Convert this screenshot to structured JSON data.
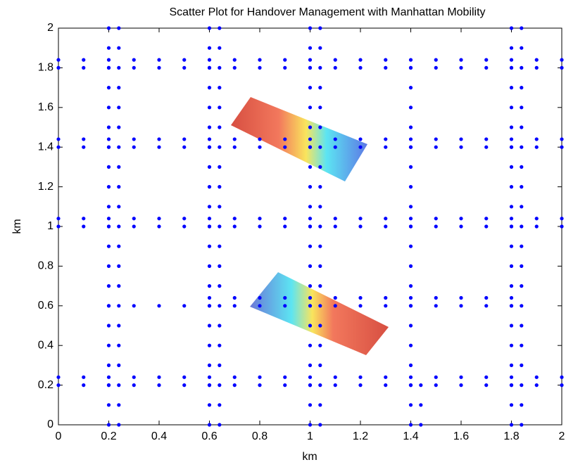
{
  "chart_data": {
    "type": "scatter",
    "title": "Scatter Plot for Handover Management with Manhattan Mobility",
    "xlabel": "km",
    "ylabel": "km",
    "color": "#0000ff",
    "xlim": [
      0,
      2
    ],
    "ylim": [
      0,
      2
    ],
    "xticks": [
      0,
      0.2,
      0.4,
      0.6,
      0.8,
      1,
      1.2,
      1.4,
      1.6,
      1.8,
      2
    ],
    "yticks": [
      0,
      0.2,
      0.4,
      0.6,
      0.8,
      1,
      1.2,
      1.4,
      1.6,
      1.8,
      2
    ],
    "series": [
      {
        "x": [
          0.2,
          0.2,
          0.2,
          0.2,
          0.2,
          0.2,
          0.2,
          0.2,
          0.2,
          0.2,
          0.2,
          0.2,
          0.2,
          0.2,
          0.2,
          0.2,
          0.2,
          0.2,
          0.2,
          0.2,
          0.2
        ],
        "values": [
          0,
          0.1,
          0.2,
          0.3,
          0.4,
          0.5,
          0.6,
          0.7,
          0.8,
          0.9,
          1,
          1.1,
          1.2,
          1.3,
          1.4,
          1.5,
          1.6,
          1.7,
          1.8,
          1.9,
          2
        ]
      },
      {
        "x": [
          0.24,
          0.24,
          0.24,
          0.24,
          0.24,
          0.24,
          0.24,
          0.24,
          0.24,
          0.24,
          0.24,
          0.24,
          0.24,
          0.24,
          0.24,
          0.24,
          0.24,
          0.24,
          0.24,
          0.24,
          0.24
        ],
        "values": [
          0,
          0.1,
          0.2,
          0.3,
          0.4,
          0.5,
          0.6,
          0.7,
          0.8,
          0.9,
          1,
          1.1,
          1.2,
          1.3,
          1.4,
          1.5,
          1.6,
          1.7,
          1.8,
          1.9,
          2
        ]
      },
      {
        "x": [
          0.6,
          0.6,
          0.6,
          0.6,
          0.6,
          0.6,
          0.6,
          0.6,
          0.6,
          0.6,
          0.6,
          0.6,
          0.6,
          0.6,
          0.6,
          0.6,
          0.6,
          0.6,
          0.6,
          0.6,
          0.6
        ],
        "values": [
          0,
          0.1,
          0.2,
          0.3,
          0.4,
          0.5,
          0.6,
          0.7,
          0.8,
          0.9,
          1,
          1.1,
          1.2,
          1.3,
          1.4,
          1.5,
          1.6,
          1.7,
          1.8,
          1.9,
          2
        ]
      },
      {
        "x": [
          0.64,
          0.64,
          0.64,
          0.64,
          0.64,
          0.64,
          0.64,
          0.64,
          0.64,
          0.64,
          0.64,
          0.64,
          0.64,
          0.64,
          0.64,
          0.64,
          0.64,
          0.64,
          0.64,
          0.64,
          0.64
        ],
        "values": [
          0,
          0.1,
          0.2,
          0.3,
          0.4,
          0.5,
          0.6,
          0.7,
          0.8,
          0.9,
          1,
          1.1,
          1.2,
          1.3,
          1.4,
          1.5,
          1.6,
          1.7,
          1.8,
          1.9,
          2
        ]
      },
      {
        "x": [
          1,
          1,
          1,
          1,
          1,
          1,
          1,
          1,
          1,
          1,
          1,
          1,
          1,
          1,
          1,
          1,
          1,
          1,
          1,
          1,
          1
        ],
        "values": [
          0,
          0.1,
          0.2,
          0.3,
          0.4,
          0.5,
          0.6,
          0.7,
          0.8,
          0.9,
          1,
          1.1,
          1.2,
          1.3,
          1.4,
          1.5,
          1.6,
          1.7,
          1.8,
          1.9,
          2
        ]
      },
      {
        "x": [
          1.04,
          1.04,
          1.04,
          1.04,
          1.04,
          1.04,
          1.04,
          1.04,
          1.04,
          1.04,
          1.04,
          1.04,
          1.04,
          1.04,
          1.04,
          1.04,
          1.04,
          1.04,
          1.04,
          1.04,
          1.04
        ],
        "values": [
          0,
          0.1,
          0.2,
          0.3,
          0.4,
          0.5,
          0.6,
          0.7,
          0.8,
          0.9,
          1,
          1.1,
          1.2,
          1.3,
          1.4,
          1.5,
          1.6,
          1.7,
          1.8,
          1.9,
          2
        ]
      },
      {
        "x": [
          1.4,
          1.4,
          1.4,
          1.4,
          1.4,
          1.4,
          1.4,
          1.4,
          1.4,
          1.4,
          1.4,
          1.4,
          1.4,
          1.4,
          1.4,
          1.4,
          1.4,
          1.4,
          1.4
        ],
        "values": [
          0,
          0.1,
          0.2,
          0.3,
          0.4,
          0.5,
          0.6,
          0.7,
          0.8,
          0.9,
          1,
          1.1,
          1.2,
          1.3,
          1.4,
          1.5,
          1.6,
          1.7,
          1.8
        ]
      },
      {
        "x": [
          1.44,
          1.44,
          1.44
        ],
        "values": [
          0,
          0.1,
          0.2
        ]
      },
      {
        "x": [
          1.8,
          1.8,
          1.8,
          1.8,
          1.8,
          1.8,
          1.8,
          1.8,
          1.8,
          1.8,
          1.8,
          1.8,
          1.8,
          1.8,
          1.8,
          1.8,
          1.8,
          1.8,
          1.8,
          1.8,
          1.8
        ],
        "values": [
          0,
          0.1,
          0.2,
          0.3,
          0.4,
          0.5,
          0.6,
          0.7,
          0.8,
          0.9,
          1,
          1.1,
          1.2,
          1.3,
          1.4,
          1.5,
          1.6,
          1.7,
          1.8,
          1.9,
          2
        ]
      },
      {
        "x": [
          1.84,
          1.84,
          1.84,
          1.84,
          1.84,
          1.84,
          1.84,
          1.84,
          1.84,
          1.84,
          1.84,
          1.84,
          1.84,
          1.84,
          1.84,
          1.84,
          1.84,
          1.84,
          1.84,
          1.84,
          1.84
        ],
        "values": [
          0,
          0.1,
          0.2,
          0.3,
          0.4,
          0.5,
          0.6,
          0.7,
          0.8,
          0.9,
          1,
          1.1,
          1.2,
          1.3,
          1.4,
          1.5,
          1.6,
          1.7,
          1.8,
          1.9,
          2
        ]
      },
      {
        "x": [
          0,
          0.1,
          0.2,
          0.3,
          0.4,
          0.5,
          0.6,
          0.7,
          0.8,
          0.9,
          1,
          1.1,
          1.2,
          1.3,
          1.4,
          1.5,
          1.6,
          1.7,
          1.8,
          1.9,
          2
        ],
        "values": [
          0.2,
          0.2,
          0.2,
          0.2,
          0.2,
          0.2,
          0.2,
          0.2,
          0.2,
          0.2,
          0.2,
          0.2,
          0.2,
          0.2,
          0.2,
          0.2,
          0.2,
          0.2,
          0.2,
          0.2,
          0.2
        ]
      },
      {
        "x": [
          0,
          0.1,
          0.2,
          0.3,
          0.4,
          0.5,
          0.6,
          0.7,
          0.8,
          0.9,
          1,
          1.1,
          1.2,
          1.3,
          1.4,
          1.5,
          1.6,
          1.7,
          1.8,
          1.9,
          2
        ],
        "values": [
          0.24,
          0.24,
          0.24,
          0.24,
          0.24,
          0.24,
          0.24,
          0.24,
          0.24,
          0.24,
          0.24,
          0.24,
          0.24,
          0.24,
          0.24,
          0.24,
          0.24,
          0.24,
          0.24,
          0.24,
          0.24
        ]
      },
      {
        "x": [
          0.2,
          0.3,
          0.4,
          0.5,
          0.6,
          0.7,
          0.8,
          0.9,
          1,
          1.1,
          1.2,
          1.3,
          1.4,
          1.5,
          1.6,
          1.7,
          1.8
        ],
        "values": [
          0.6,
          0.6,
          0.6,
          0.6,
          0.6,
          0.6,
          0.6,
          0.6,
          0.6,
          0.6,
          0.6,
          0.6,
          0.6,
          0.6,
          0.6,
          0.6,
          0.6
        ]
      },
      {
        "x": [
          0.6,
          0.7,
          0.8,
          0.9,
          1,
          1.1,
          1.2,
          1.3,
          1.4,
          1.5,
          1.6,
          1.7,
          1.8
        ],
        "values": [
          0.64,
          0.64,
          0.64,
          0.64,
          0.64,
          0.64,
          0.64,
          0.64,
          0.64,
          0.64,
          0.64,
          0.64,
          0.64
        ]
      },
      {
        "x": [
          0,
          0.1,
          0.2,
          0.3,
          0.4,
          0.5,
          0.6,
          0.7,
          0.8,
          0.9,
          1,
          1.1,
          1.2,
          1.3,
          1.4,
          1.5,
          1.6,
          1.7,
          1.8,
          1.9,
          2
        ],
        "values": [
          1,
          1,
          1,
          1,
          1,
          1,
          1,
          1,
          1,
          1,
          1,
          1,
          1,
          1,
          1,
          1,
          1,
          1,
          1,
          1,
          1
        ]
      },
      {
        "x": [
          0,
          0.1,
          0.2,
          0.3,
          0.4,
          0.5,
          0.6,
          0.7,
          0.8,
          0.9,
          1,
          1.1,
          1.2,
          1.3,
          1.4,
          1.5,
          1.6,
          1.7,
          1.8,
          1.9,
          2
        ],
        "values": [
          1.04,
          1.04,
          1.04,
          1.04,
          1.04,
          1.04,
          1.04,
          1.04,
          1.04,
          1.04,
          1.04,
          1.04,
          1.04,
          1.04,
          1.04,
          1.04,
          1.04,
          1.04,
          1.04,
          1.04,
          1.04
        ]
      },
      {
        "x": [
          0,
          0.1,
          0.2,
          0.3,
          0.4,
          0.5,
          0.6,
          0.7,
          0.8,
          0.9,
          1,
          1.1,
          1.2,
          1.3,
          1.4,
          1.5,
          1.6,
          1.7,
          1.8,
          1.9,
          2
        ],
        "values": [
          1.4,
          1.4,
          1.4,
          1.4,
          1.4,
          1.4,
          1.4,
          1.4,
          1.4,
          1.4,
          1.4,
          1.4,
          1.4,
          1.4,
          1.4,
          1.4,
          1.4,
          1.4,
          1.4,
          1.4,
          1.4
        ]
      },
      {
        "x": [
          0,
          0.1,
          0.2,
          0.3,
          0.4,
          0.5,
          0.6,
          0.7,
          0.8,
          0.9,
          1,
          1.1,
          1.2,
          1.3,
          1.4,
          1.5,
          1.6,
          1.7,
          1.8,
          1.9,
          2
        ],
        "values": [
          1.44,
          1.44,
          1.44,
          1.44,
          1.44,
          1.44,
          1.44,
          1.44,
          1.44,
          1.44,
          1.44,
          1.44,
          1.44,
          1.44,
          1.44,
          1.44,
          1.44,
          1.44,
          1.44,
          1.44,
          1.44
        ]
      },
      {
        "x": [
          0,
          0.1,
          0.2,
          0.3,
          0.4,
          0.5,
          0.6,
          0.7,
          0.8,
          0.9,
          1,
          1.1,
          1.2,
          1.3,
          1.4,
          1.5,
          1.6,
          1.7,
          1.8,
          1.9,
          2
        ],
        "values": [
          1.8,
          1.8,
          1.8,
          1.8,
          1.8,
          1.8,
          1.8,
          1.8,
          1.8,
          1.8,
          1.8,
          1.8,
          1.8,
          1.8,
          1.8,
          1.8,
          1.8,
          1.8,
          1.8,
          1.8,
          1.8
        ]
      },
      {
        "x": [
          0,
          0.1,
          0.2,
          0.3,
          0.4,
          0.5,
          0.6,
          0.7,
          0.8,
          0.9,
          1,
          1.1,
          1.2,
          1.3,
          1.4,
          1.5,
          1.6,
          1.7,
          1.8,
          1.9,
          2
        ],
        "values": [
          1.84,
          1.84,
          1.84,
          1.84,
          1.84,
          1.84,
          1.84,
          1.84,
          1.84,
          1.84,
          1.84,
          1.84,
          1.84,
          1.84,
          1.84,
          1.84,
          1.84,
          1.84,
          1.84,
          1.84,
          1.84
        ]
      }
    ]
  }
}
